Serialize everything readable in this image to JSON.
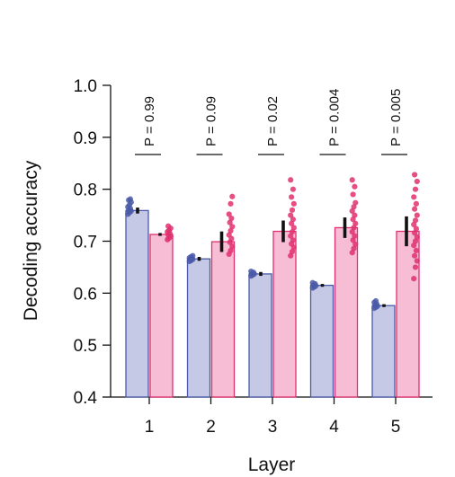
{
  "chart_data": {
    "type": "bar",
    "xlabel": "Layer",
    "ylabel": "Decoding accuracy",
    "ylim": [
      0.4,
      1.0
    ],
    "yticks": [
      "0.4",
      "0.5",
      "0.6",
      "0.7",
      "0.8",
      "0.9",
      "1.0"
    ],
    "categories": [
      "1",
      "2",
      "3",
      "4",
      "5"
    ],
    "series": [
      {
        "values": [
          0.759,
          0.666,
          0.637,
          0.615,
          0.576
        ],
        "errors": [
          0.004,
          0.002,
          0.002,
          0.001,
          0.001
        ],
        "points": [
          [
            0.752,
            0.755,
            0.758,
            0.76,
            0.763,
            0.766,
            0.77,
            0.775,
            0.779,
            0.781
          ],
          [
            0.661,
            0.663,
            0.665,
            0.666,
            0.667,
            0.668,
            0.67,
            0.672
          ],
          [
            0.633,
            0.635,
            0.637,
            0.638,
            0.64,
            0.642
          ],
          [
            0.61,
            0.612,
            0.614,
            0.616,
            0.618,
            0.62
          ],
          [
            0.571,
            0.573,
            0.575,
            0.577,
            0.579,
            0.582,
            0.585
          ]
        ],
        "color": "#c5c9e6",
        "edge": "#4a5aa8"
      },
      {
        "values": [
          0.713,
          0.699,
          0.719,
          0.726,
          0.719
        ],
        "errors": [
          0.001,
          0.018,
          0.019,
          0.018,
          0.027
        ],
        "points": [
          [
            0.703,
            0.706,
            0.709,
            0.712,
            0.715,
            0.718,
            0.721,
            0.725,
            0.729
          ],
          [
            0.675,
            0.682,
            0.69,
            0.698,
            0.705,
            0.712,
            0.72,
            0.728,
            0.736,
            0.744,
            0.752,
            0.772,
            0.786
          ],
          [
            0.672,
            0.68,
            0.688,
            0.695,
            0.702,
            0.71,
            0.718,
            0.726,
            0.734,
            0.742,
            0.75,
            0.76,
            0.772,
            0.785,
            0.8,
            0.818
          ],
          [
            0.678,
            0.686,
            0.694,
            0.702,
            0.71,
            0.718,
            0.726,
            0.734,
            0.742,
            0.75,
            0.758,
            0.766,
            0.774,
            0.79,
            0.805,
            0.818
          ],
          [
            0.628,
            0.65,
            0.662,
            0.672,
            0.682,
            0.692,
            0.7,
            0.708,
            0.716,
            0.724,
            0.732,
            0.74,
            0.75,
            0.762,
            0.772,
            0.785,
            0.8,
            0.815,
            0.828
          ]
        ],
        "color": "#f7bdd5",
        "edge": "#e0306f"
      }
    ],
    "annotations": [
      "P = 0.99",
      "P = 0.09",
      "P = 0.02",
      "P = 0.004",
      "P = 0.005"
    ]
  }
}
